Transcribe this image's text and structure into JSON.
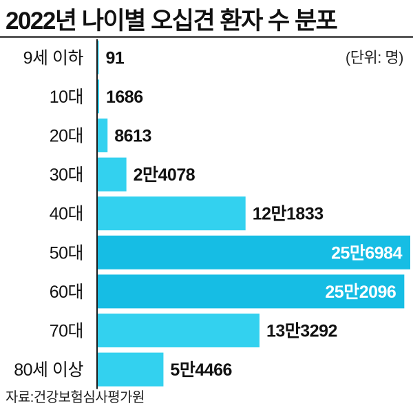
{
  "title": "2022년 나이별 오십견 환자 수 분포",
  "unit": "(단위: 명)",
  "source": "자료:건강보험심사평가원",
  "colors": {
    "bar": "#33d1ef",
    "bar_dark": "#16bde4",
    "axis": "#1a1a1a",
    "text": "#111111"
  },
  "chart_data": {
    "type": "bar",
    "orientation": "horizontal",
    "title": "2022년 나이별 오십견 환자 수 분포",
    "unit": "명",
    "categories": [
      "9세 이하",
      "10대",
      "20대",
      "30대",
      "40대",
      "50대",
      "60대",
      "70대",
      "80세 이상"
    ],
    "values": [
      91,
      1686,
      8613,
      24078,
      121833,
      256984,
      252096,
      133292,
      54466
    ],
    "value_labels": [
      "91",
      "1686",
      "8613",
      "2만4078",
      "12만1833",
      "25만6984",
      "25만2096",
      "13만3292",
      "5만4466"
    ],
    "highlighted": [
      "50대",
      "60대"
    ],
    "xlim": [
      0,
      256984
    ]
  }
}
